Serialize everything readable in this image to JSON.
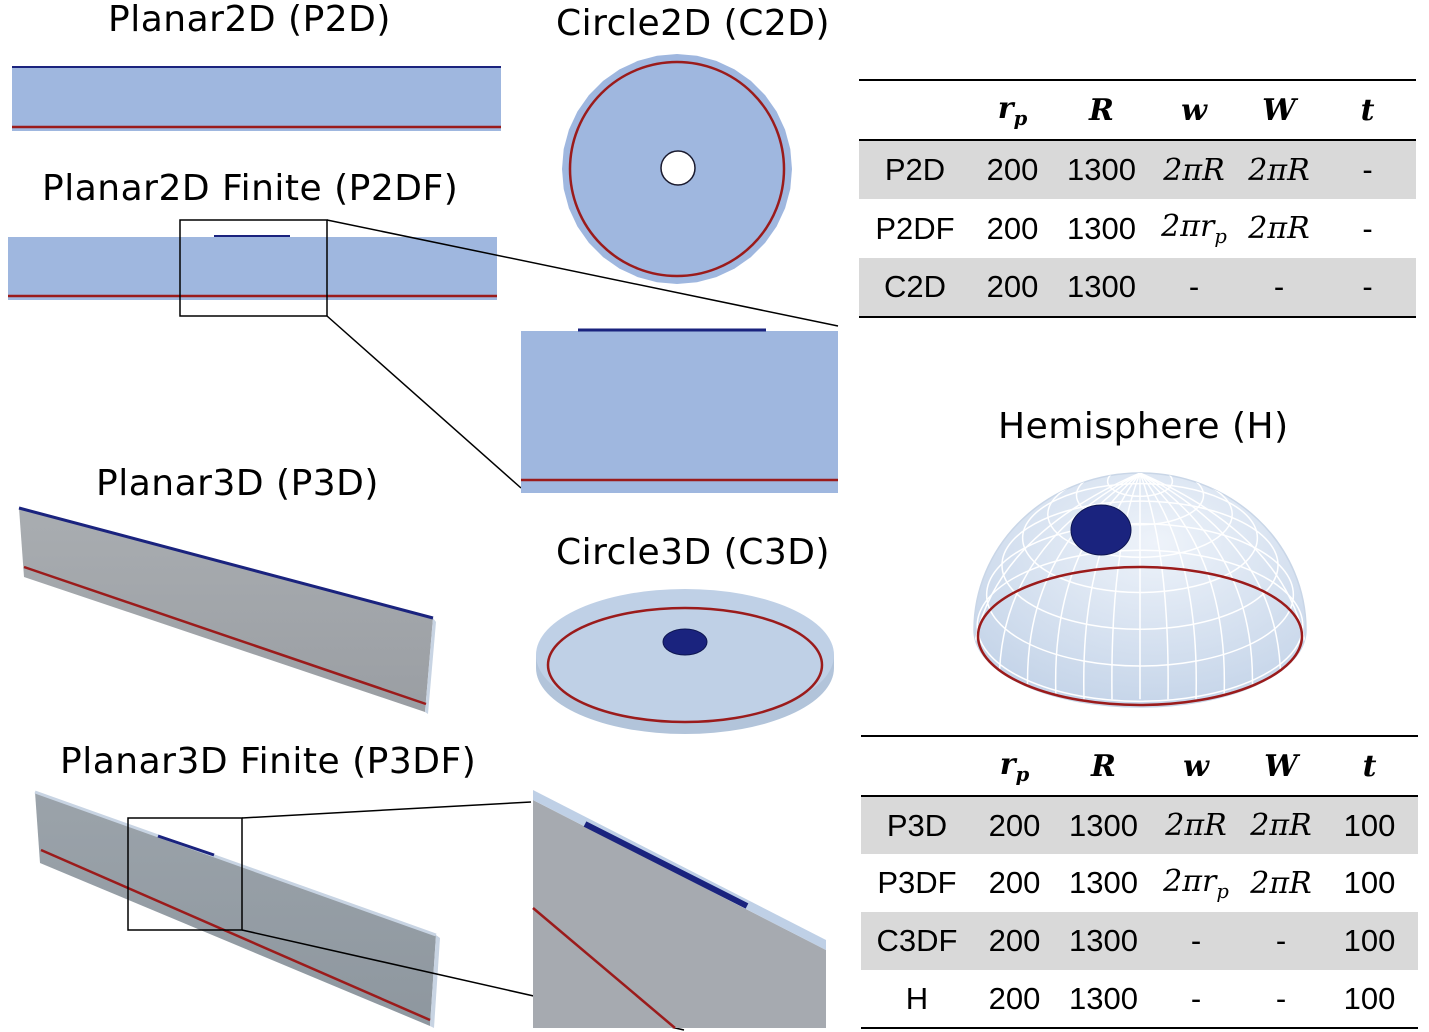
{
  "titles": {
    "p2d": "Planar2D (P2D)",
    "p2df": "Planar2D Finite (P2DF)",
    "c2d": "Circle2D (C2D)",
    "p3d": "Planar3D (P3D)",
    "c3d": "Circle3D (C3D)",
    "hemi": "Hemisphere (H)",
    "p3df": "Planar3D Finite (P3DF)"
  },
  "colors": {
    "fill2d": "#9fb7df",
    "fill3d": "#bfd0e6",
    "slab3d": "#a4a8ad",
    "electrode": "#1a237e",
    "ground": "#9b1b1b"
  },
  "table2d": {
    "headers": [
      "",
      "r",
      "R",
      "w",
      "W",
      "t"
    ],
    "r_sub": "p",
    "rows": [
      {
        "name": "P2D",
        "rp": "200",
        "R": "1300",
        "w": "2πR",
        "W": "2πR",
        "t": "-",
        "shade": true
      },
      {
        "name": "P2DF",
        "rp": "200",
        "R": "1300",
        "w": "2πr",
        "w_sub": "p",
        "W": "2πR",
        "t": "-",
        "shade": false
      },
      {
        "name": "C2D",
        "rp": "200",
        "R": "1300",
        "w": "-",
        "W": "-",
        "t": "-",
        "shade": true
      }
    ]
  },
  "table3d": {
    "headers": [
      "",
      "r",
      "R",
      "w",
      "W",
      "t"
    ],
    "r_sub": "p",
    "rows": [
      {
        "name": "P3D",
        "rp": "200",
        "R": "1300",
        "w": "2πR",
        "W": "2πR",
        "t": "100",
        "shade": true
      },
      {
        "name": "P3DF",
        "rp": "200",
        "R": "1300",
        "w": "2πr",
        "w_sub": "p",
        "W": "2πR",
        "t": "100",
        "shade": false
      },
      {
        "name": "C3DF",
        "rp": "200",
        "R": "1300",
        "w": "-",
        "W": "-",
        "t": "100",
        "shade": true
      },
      {
        "name": "H",
        "rp": "200",
        "R": "1300",
        "w": "-",
        "W": "-",
        "t": "100",
        "shade": false
      }
    ]
  }
}
